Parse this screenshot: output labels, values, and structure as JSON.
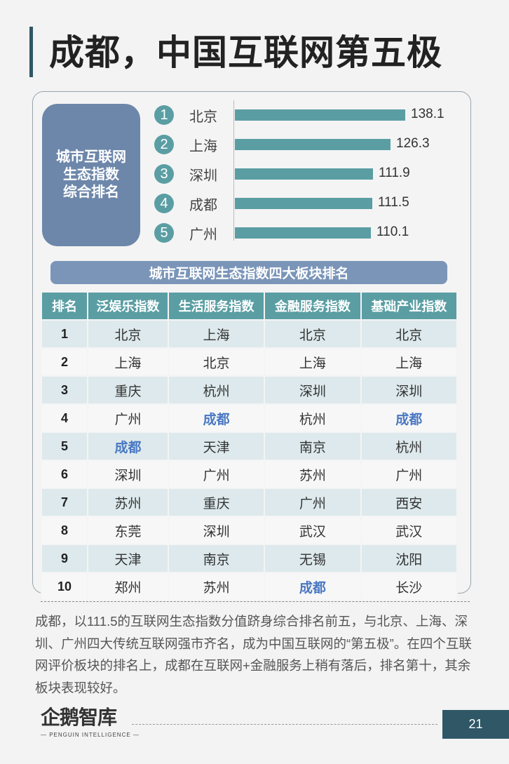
{
  "title": "成都，中国互联网第五极",
  "badge": {
    "lines": [
      "城市互联网",
      "生态指数",
      "综合排名"
    ]
  },
  "ranking": [
    {
      "rank": "1",
      "city": "北京",
      "value": 138.1,
      "label": "138.1"
    },
    {
      "rank": "2",
      "city": "上海",
      "value": 126.3,
      "label": "126.3"
    },
    {
      "rank": "3",
      "city": "深圳",
      "value": 111.9,
      "label": "111.9"
    },
    {
      "rank": "4",
      "city": "成都",
      "value": 111.5,
      "label": "111.5"
    },
    {
      "rank": "5",
      "city": "广州",
      "value": 110.1,
      "label": "110.1"
    }
  ],
  "section_title": "城市互联网生态指数四大板块排名",
  "table": {
    "headers": [
      "排名",
      "泛娱乐指数",
      "生活服务指数",
      "金融服务指数",
      "基础产业指数"
    ],
    "rows": [
      [
        "1",
        "北京",
        "上海",
        "北京",
        "北京"
      ],
      [
        "2",
        "上海",
        "北京",
        "上海",
        "上海"
      ],
      [
        "3",
        "重庆",
        "杭州",
        "深圳",
        "深圳"
      ],
      [
        "4",
        "广州",
        "成都",
        "杭州",
        "成都"
      ],
      [
        "5",
        "成都",
        "天津",
        "南京",
        "杭州"
      ],
      [
        "6",
        "深圳",
        "广州",
        "苏州",
        "广州"
      ],
      [
        "7",
        "苏州",
        "重庆",
        "广州",
        "西安"
      ],
      [
        "8",
        "东莞",
        "深圳",
        "武汉",
        "武汉"
      ],
      [
        "9",
        "天津",
        "南京",
        "无锡",
        "沈阳"
      ],
      [
        "10",
        "郑州",
        "苏州",
        "成都",
        "长沙"
      ]
    ],
    "highlight_city": "成都",
    "highlight_color": "#4a78c2"
  },
  "paragraph": "成都，以111.5的互联网生态指数分值跻身综合排名前五，与北京、上海、深圳、广州四大传统互联网强市齐名，成为中国互联网的“第五极”。在四个互联网评价板块的排名上，成都在互联网+金融服务上稍有落后，排名第十，其余板块表现较好。",
  "logo": {
    "main": "企鹅智库",
    "sub": "— PENGUIN INTELLIGENCE —"
  },
  "page_number": "21",
  "colors": {
    "accent": "#5a9ea3",
    "dark": "#2f5766",
    "badge": "#6d87aa"
  }
}
